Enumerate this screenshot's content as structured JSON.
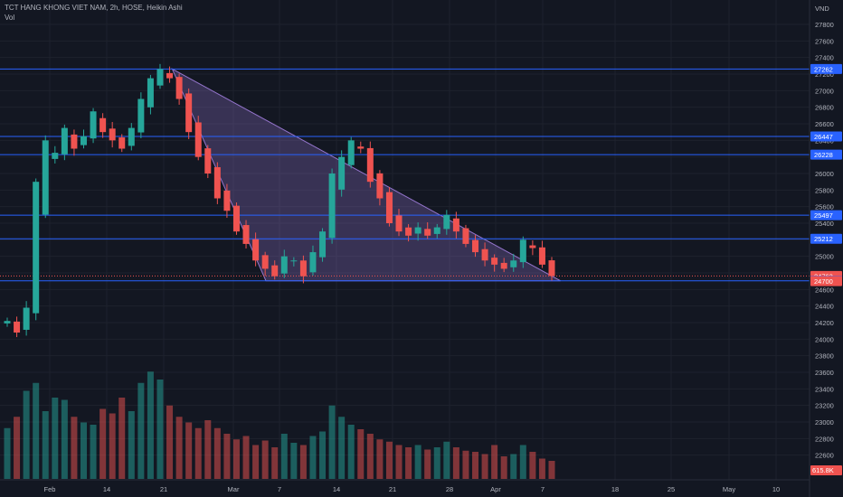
{
  "header": {
    "title": "TCT HANG KHONG VIET NAM, 2h, HOSE, Heikin Ashi",
    "volume_label": "Vol"
  },
  "chart_data": {
    "type": "candlestick",
    "style": "Heikin Ashi",
    "symbol": "TCT HANG KHONG VIET NAM",
    "interval": "2h",
    "exchange": "HOSE",
    "currency": "VND",
    "grid": true,
    "colors": {
      "background": "#131722",
      "up": "#26a69a",
      "down": "#ef5350",
      "level_line": "#2962ff",
      "triangle_fill": "#9c7bd9",
      "triangle_line": "#9575cd"
    },
    "y_axis": {
      "label": "VND",
      "ylim": [
        22480,
        27960
      ],
      "ticks": [
        22600,
        22800,
        23000,
        23200,
        23400,
        23600,
        23800,
        24000,
        24200,
        24400,
        24600,
        24800,
        25000,
        25200,
        25400,
        25600,
        25800,
        26000,
        26200,
        26400,
        26600,
        26800,
        27000,
        27200,
        27400,
        27600,
        27800
      ]
    },
    "x_axis": {
      "ticks": [
        "Feb",
        "14",
        "21",
        "Mar",
        "7",
        "14",
        "21",
        "28",
        "Apr",
        "7",
        "18",
        "25",
        "May",
        "10"
      ]
    },
    "horizontal_levels": [
      27262,
      26447,
      26228,
      25497,
      25212,
      24705
    ],
    "price_tags": [
      {
        "value": 27262,
        "color": "#2962ff"
      },
      {
        "value": 26447,
        "color": "#2962ff"
      },
      {
        "value": 26228,
        "color": "#2962ff"
      },
      {
        "value": 25497,
        "color": "#2962ff"
      },
      {
        "value": 25212,
        "color": "#2962ff"
      },
      {
        "value": 24763,
        "color": "#ef5350"
      },
      {
        "value": 24705,
        "color": "#2962ff"
      },
      {
        "value": 24700,
        "color": "#ef5350"
      }
    ],
    "volume_tag": "615.8K",
    "triangle": {
      "apex_start": {
        "date": "2025-02-21",
        "price": 27262
      },
      "upper_end": {
        "date": "2025-04-20",
        "price": 24705
      },
      "base_start": {
        "date": "2025-03-07",
        "price": 24705
      }
    },
    "ohlc_path": [
      24220,
      24080,
      24380,
      25900,
      26400,
      26250,
      26550,
      26300,
      26450,
      26750,
      26500,
      26400,
      26300,
      26550,
      26900,
      27150,
      27262,
      27150,
      26900,
      26500,
      26200,
      26000,
      25700,
      25550,
      25300,
      25150,
      24950,
      24850,
      24760,
      25000,
      24950,
      24760,
      25050,
      25300,
      26000,
      26200,
      26400,
      26300,
      25900,
      25700,
      25400,
      25300,
      25250,
      25350,
      25250,
      25350,
      25500,
      25300,
      25150,
      25050,
      24950,
      24900,
      24850,
      24950,
      25200,
      25100,
      24900,
      24763
    ],
    "volume_relative": [
      0.45,
      0.55,
      0.78,
      0.85,
      0.6,
      0.72,
      0.7,
      0.55,
      0.5,
      0.48,
      0.62,
      0.58,
      0.72,
      0.6,
      0.85,
      0.95,
      0.88,
      0.65,
      0.55,
      0.5,
      0.45,
      0.52,
      0.45,
      0.4,
      0.35,
      0.38,
      0.3,
      0.34,
      0.28,
      0.4,
      0.32,
      0.3,
      0.38,
      0.42,
      0.65,
      0.55,
      0.48,
      0.44,
      0.4,
      0.35,
      0.33,
      0.3,
      0.28,
      0.3,
      0.26,
      0.28,
      0.33,
      0.28,
      0.25,
      0.24,
      0.22,
      0.3,
      0.2,
      0.22,
      0.3,
      0.24,
      0.18,
      0.16
    ]
  }
}
